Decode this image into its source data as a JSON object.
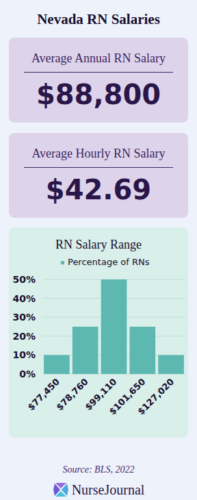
{
  "title": "Nevada RN Salaries",
  "cards": [
    {
      "label": "Average Annual RN Salary",
      "value": "$88,800"
    },
    {
      "label": "Average Hourly RN Salary",
      "value": "$42.69"
    }
  ],
  "chart_data": {
    "type": "bar",
    "title": "RN Salary Range",
    "categories": [
      "$77,450",
      "$78,760",
      "$99,110",
      "$101,650",
      "$127,020"
    ],
    "series": [
      {
        "name": "Percentage of RNs",
        "color": "#5cb8b0",
        "values": [
          10,
          25,
          50,
          25,
          10
        ]
      }
    ],
    "ylim": [
      0,
      50
    ],
    "yticks": [
      {
        "value": 0,
        "label": "0%"
      },
      {
        "value": 10,
        "label": "10%"
      },
      {
        "value": 20,
        "label": "20%"
      },
      {
        "value": 30,
        "label": "30%"
      },
      {
        "value": 40,
        "label": "40%"
      },
      {
        "value": 50,
        "label": "50%"
      }
    ],
    "grid": true,
    "legend": "top"
  },
  "source": "Source: BLS, 2022",
  "brand": "NurseJournal"
}
